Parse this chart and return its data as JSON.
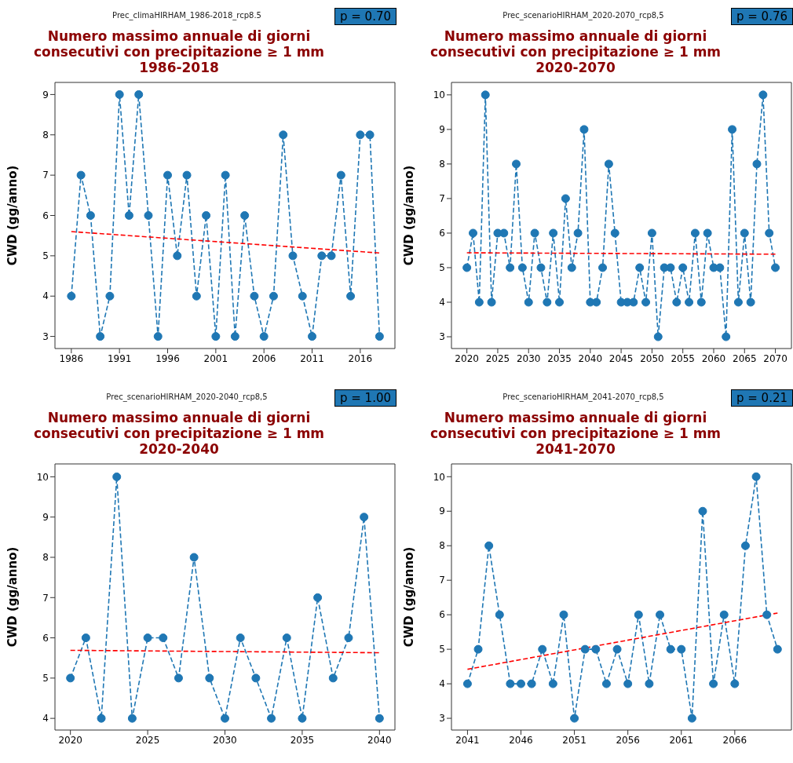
{
  "chart_data": [
    {
      "type": "line",
      "subtitle": "Prec_climaHIRHAM_1986-2018_rcp8.5",
      "title": "Numero massimo annuale di giorni\nconsecutivi con precipitazione ≥ 1 mm\n1986-2018",
      "ylabel": "CWD (gg/anno)",
      "annotations": [
        "p = 0.70"
      ],
      "xlim": [
        1984.3,
        2019.6
      ],
      "ylim": [
        2.7,
        9.3
      ],
      "xticks": [
        1986,
        1991,
        1996,
        2001,
        2006,
        2011,
        2016
      ],
      "yticks": [
        3,
        4,
        5,
        6,
        7,
        8,
        9
      ],
      "grid": false,
      "legend": false,
      "series": [
        {
          "x": [
            1986,
            1987,
            1988,
            1989,
            1990,
            1991,
            1992,
            1993,
            1994,
            1995,
            1996,
            1997,
            1998,
            1999,
            2000,
            2001,
            2002,
            2003,
            2004,
            2005,
            2006,
            2007,
            2008,
            2009,
            2010,
            2011,
            2012,
            2013,
            2014,
            2015,
            2016,
            2017,
            2018
          ],
          "values": [
            4,
            7,
            6,
            3,
            4,
            9,
            6,
            9,
            6,
            3,
            7,
            5,
            7,
            4,
            6,
            3,
            7,
            3,
            6,
            4,
            3,
            4,
            8,
            5,
            4,
            3,
            5,
            5,
            7,
            4,
            8,
            8,
            3
          ],
          "color": "#1f77b4",
          "line_style": "dashed",
          "marker": "circle"
        },
        {
          "x": [
            1986,
            2018
          ],
          "values": [
            5.6,
            5.07
          ],
          "color": "#ff0000",
          "line_style": "dashed",
          "marker": "none"
        }
      ]
    },
    {
      "type": "line",
      "subtitle": "Prec_scenarioHIRHAM_2020-2070_rcp8,5",
      "title": "Numero massimo annuale di giorni\nconsecutivi con precipitazione ≥ 1 mm\n2020-2070",
      "ylabel": "CWD (gg/anno)",
      "annotations": [
        "p = 0.76"
      ],
      "xlim": [
        2017.5,
        2072.6
      ],
      "ylim": [
        2.66,
        10.36
      ],
      "xticks": [
        2020,
        2025,
        2030,
        2035,
        2040,
        2045,
        2050,
        2055,
        2060,
        2065,
        2070
      ],
      "yticks": [
        3,
        4,
        5,
        6,
        7,
        8,
        9,
        10
      ],
      "grid": false,
      "legend": false,
      "series": [
        {
          "x": [
            2020,
            2021,
            2022,
            2023,
            2024,
            2025,
            2026,
            2027,
            2028,
            2029,
            2030,
            2031,
            2032,
            2033,
            2034,
            2035,
            2036,
            2037,
            2038,
            2039,
            2040,
            2041,
            2042,
            2043,
            2044,
            2045,
            2046,
            2047,
            2048,
            2049,
            2050,
            2051,
            2052,
            2053,
            2054,
            2055,
            2056,
            2057,
            2058,
            2059,
            2060,
            2061,
            2062,
            2063,
            2064,
            2065,
            2066,
            2067,
            2068,
            2069,
            2070
          ],
          "values": [
            5,
            6,
            4,
            10,
            4,
            6,
            6,
            5,
            8,
            5,
            4,
            6,
            5,
            4,
            6,
            4,
            7,
            5,
            6,
            9,
            4,
            4,
            5,
            8,
            6,
            4,
            4,
            4,
            5,
            4,
            6,
            3,
            5,
            5,
            4,
            5,
            4,
            6,
            4,
            6,
            5,
            5,
            3,
            9,
            4,
            6,
            4,
            8,
            10,
            6,
            5
          ],
          "color": "#1f77b4",
          "line_style": "dashed",
          "marker": "circle"
        },
        {
          "x": [
            2020,
            2070
          ],
          "values": [
            5.43,
            5.39
          ],
          "color": "#ff0000",
          "line_style": "dashed",
          "marker": "none"
        }
      ]
    },
    {
      "type": "line",
      "subtitle": "Prec_scenarioHIRHAM_2020-2040_rcp8,5",
      "title": "Numero massimo annuale di giorni\nconsecutivi con precipitazione ≥ 1 mm\n2020-2040",
      "ylabel": "CWD (gg/anno)",
      "annotations": [
        "p = 1.00"
      ],
      "xlim": [
        2019.0,
        2041.0
      ],
      "ylim": [
        3.71,
        10.32
      ],
      "xticks": [
        2020,
        2025,
        2030,
        2035,
        2040
      ],
      "yticks": [
        4,
        5,
        6,
        7,
        8,
        9,
        10
      ],
      "grid": false,
      "legend": false,
      "series": [
        {
          "x": [
            2020,
            2021,
            2022,
            2023,
            2024,
            2025,
            2026,
            2027,
            2028,
            2029,
            2030,
            2031,
            2032,
            2033,
            2034,
            2035,
            2036,
            2037,
            2038,
            2039,
            2040
          ],
          "values": [
            5,
            6,
            4,
            10,
            4,
            6,
            6,
            5,
            8,
            5,
            4,
            6,
            5,
            4,
            6,
            4,
            7,
            5,
            6,
            9,
            4
          ],
          "color": "#1f77b4",
          "line_style": "dashed",
          "marker": "circle"
        },
        {
          "x": [
            2020,
            2040
          ],
          "values": [
            5.69,
            5.63
          ],
          "color": "#ff0000",
          "line_style": "dashed",
          "marker": "none"
        }
      ]
    },
    {
      "type": "line",
      "subtitle": "Prec_scenarioHIRHAM_2041-2070_rcp8,5",
      "title": "Numero massimo annuale di giorni\nconsecutivi con precipitazione ≥ 1 mm\n2041-2070",
      "ylabel": "CWD (gg/anno)",
      "annotations": [
        "p = 0.21"
      ],
      "xlim": [
        2039.5,
        2071.3
      ],
      "ylim": [
        2.66,
        10.37
      ],
      "xticks": [
        2041,
        2046,
        2051,
        2056,
        2061,
        2066
      ],
      "yticks": [
        3,
        4,
        5,
        6,
        7,
        8,
        9,
        10
      ],
      "grid": false,
      "legend": false,
      "series": [
        {
          "x": [
            2041,
            2042,
            2043,
            2044,
            2045,
            2046,
            2047,
            2048,
            2049,
            2050,
            2051,
            2052,
            2053,
            2054,
            2055,
            2056,
            2057,
            2058,
            2059,
            2060,
            2061,
            2062,
            2063,
            2064,
            2065,
            2066,
            2067,
            2068,
            2069,
            2070
          ],
          "values": [
            4,
            5,
            8,
            6,
            4,
            4,
            4,
            5,
            4,
            6,
            3,
            5,
            5,
            4,
            5,
            4,
            6,
            4,
            6,
            5,
            5,
            3,
            9,
            4,
            6,
            4,
            8,
            10,
            6,
            5
          ],
          "color": "#1f77b4",
          "line_style": "dashed",
          "marker": "circle"
        },
        {
          "x": [
            2041,
            2070
          ],
          "values": [
            4.42,
            6.05
          ],
          "color": "#ff0000",
          "line_style": "dashed",
          "marker": "none"
        }
      ]
    }
  ]
}
